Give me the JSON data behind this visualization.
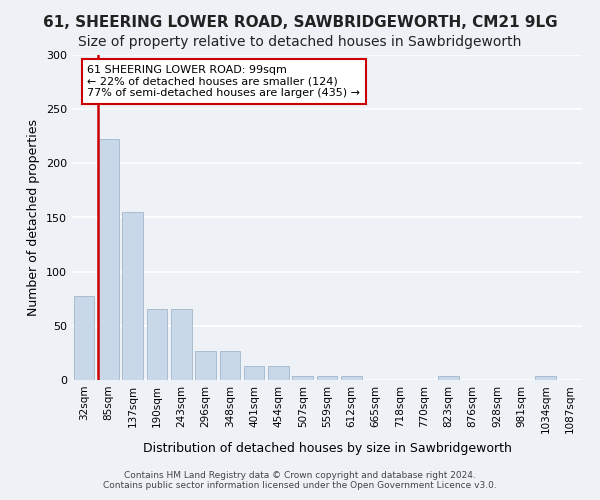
{
  "title_line1": "61, SHEERING LOWER ROAD, SAWBRIDGEWORTH, CM21 9LG",
  "title_line2": "Size of property relative to detached houses in Sawbridgeworth",
  "xlabel": "Distribution of detached houses by size in Sawbridgeworth",
  "ylabel": "Number of detached properties",
  "footer_line1": "Contains HM Land Registry data © Crown copyright and database right 2024.",
  "footer_line2": "Contains public sector information licensed under the Open Government Licence v3.0.",
  "bin_labels": [
    "32sqm",
    "85sqm",
    "137sqm",
    "190sqm",
    "243sqm",
    "296sqm",
    "348sqm",
    "401sqm",
    "454sqm",
    "507sqm",
    "559sqm",
    "612sqm",
    "665sqm",
    "718sqm",
    "770sqm",
    "823sqm",
    "876sqm",
    "928sqm",
    "981sqm",
    "1034sqm",
    "1087sqm"
  ],
  "bar_heights": [
    78,
    222,
    155,
    66,
    66,
    27,
    27,
    13,
    13,
    4,
    4,
    4,
    0,
    0,
    0,
    4,
    0,
    0,
    0,
    4,
    0
  ],
  "bar_color": "#c8d8e8",
  "bar_edge_color": "#a0b8cc",
  "property_bin_index": 1,
  "vline_color": "#cc0000",
  "annotation_text": "61 SHEERING LOWER ROAD: 99sqm\n← 22% of detached houses are smaller (124)\n77% of semi-detached houses are larger (435) →",
  "annotation_box_color": "#ffffff",
  "annotation_box_edge": "#cc0000",
  "ylim": [
    0,
    300
  ],
  "yticks": [
    0,
    50,
    100,
    150,
    200,
    250,
    300
  ],
  "background_color": "#eef2f7",
  "grid_color": "#ffffff",
  "title_fontsize": 11,
  "subtitle_fontsize": 10,
  "axis_label_fontsize": 9,
  "tick_fontsize": 7.5
}
